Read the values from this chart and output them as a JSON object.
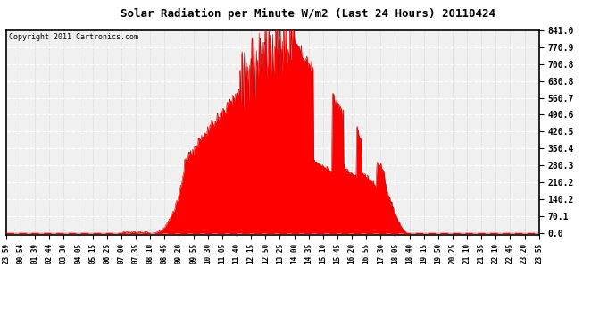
{
  "title": "Solar Radiation per Minute W/m2 (Last 24 Hours) 20110424",
  "copyright": "Copyright 2011 Cartronics.com",
  "background_color": "#ffffff",
  "plot_bg_color": "#f0f0f0",
  "fill_color": "#ff0000",
  "line_color": "#cc0000",
  "dashed_line_color": "#ff0000",
  "yticks": [
    0.0,
    70.1,
    140.2,
    210.2,
    280.3,
    350.4,
    420.5,
    490.6,
    560.7,
    630.8,
    700.8,
    770.9,
    841.0
  ],
  "ylim": [
    0,
    841.0
  ],
  "xtick_labels": [
    "23:59",
    "00:54",
    "01:39",
    "02:44",
    "03:30",
    "04:05",
    "05:15",
    "06:25",
    "07:00",
    "07:35",
    "08:10",
    "08:45",
    "09:20",
    "09:55",
    "10:30",
    "11:05",
    "11:40",
    "12:15",
    "12:50",
    "13:25",
    "14:00",
    "14:35",
    "15:10",
    "15:45",
    "16:20",
    "16:55",
    "17:30",
    "18:05",
    "18:40",
    "19:15",
    "19:50",
    "20:25",
    "21:10",
    "21:35",
    "22:10",
    "22:45",
    "23:20",
    "23:55"
  ],
  "num_points": 1440,
  "solar_max": 841.0
}
